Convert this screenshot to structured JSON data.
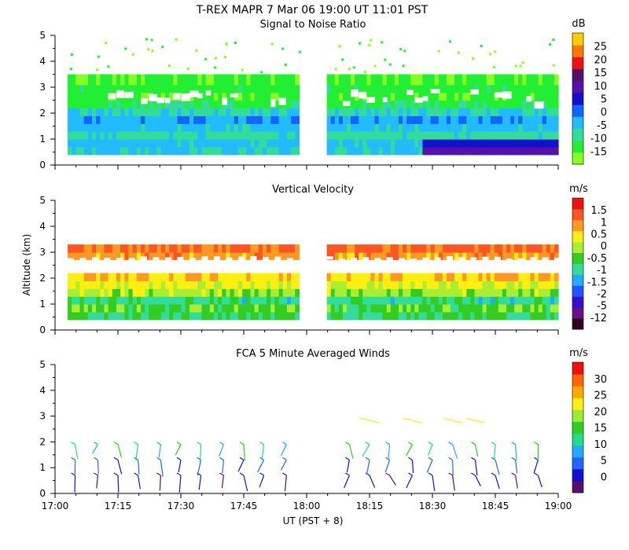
{
  "figure": {
    "title": "T-REX   MAPR   7 Mar 06   19:00 UT   11:01   PST",
    "ylabel": "Altitude (km)",
    "xlabel": "UT  (PST + 8)",
    "x_ticks": [
      17.0,
      17.25,
      17.5,
      17.75,
      18.0,
      18.25,
      18.5,
      18.75,
      19.0
    ],
    "x_tick_labels": [
      "17:00",
      "17:15",
      "17:30",
      "17:45",
      "18:00",
      "18:15",
      "18:30",
      "18:45",
      "19:00"
    ],
    "y_ticks": [
      0,
      1,
      2,
      3,
      4,
      5
    ],
    "y_tick_labels": [
      "0",
      "1",
      "2",
      "3",
      "4",
      "5"
    ]
  },
  "chart_data": [
    {
      "type": "heatmap",
      "title": "Signal to Noise Ratio",
      "xlabel": "UT  (PST + 8)",
      "ylabel": "Altitude (km)",
      "xlim": [
        17.0,
        19.0
      ],
      "ylim": [
        0,
        5
      ],
      "data_segments": [
        [
          17.05,
          17.97
        ],
        [
          18.08,
          19.0
        ]
      ],
      "colorbar": {
        "unit": "dB",
        "colors": [
          "#88ff22",
          "#22ee33",
          "#33dd99",
          "#22bbff",
          "#1166ff",
          "#1111cc",
          "#5511aa",
          "#551166",
          "#ee1111",
          "#ff7700",
          "#ffcc00"
        ],
        "ticks": [
          "-15",
          "-10",
          "-5",
          "0",
          "5",
          "10",
          "15",
          "20",
          "25"
        ]
      },
      "layers": [
        {
          "y0": 0.4,
          "y1": 0.7,
          "value": -5
        },
        {
          "y0": 0.7,
          "y1": 1.0,
          "value": -3
        },
        {
          "y0": 1.0,
          "y1": 1.3,
          "value": -7
        },
        {
          "y0": 1.3,
          "y1": 1.6,
          "value": -3
        },
        {
          "y0": 1.6,
          "y1": 1.9,
          "value": -1
        },
        {
          "y0": 1.9,
          "y1": 2.2,
          "value": -6
        },
        {
          "y0": 2.2,
          "y1": 2.5,
          "value": -11
        },
        {
          "y0": 2.5,
          "y1": 2.8,
          "value": -14
        },
        {
          "y0": 2.8,
          "y1": 3.1,
          "value": -12
        },
        {
          "y0": 3.1,
          "y1": 3.5,
          "value": -14
        }
      ]
    },
    {
      "type": "heatmap",
      "title": "Vertical Velocity",
      "xlabel": "UT  (PST + 8)",
      "ylabel": "Altitude (km)",
      "xlim": [
        17.0,
        19.0
      ],
      "ylim": [
        0,
        5
      ],
      "data_segments": [
        [
          17.05,
          17.97
        ],
        [
          18.08,
          19.0
        ]
      ],
      "colorbar": {
        "unit": "m/s",
        "colors": [
          "#330022",
          "#661188",
          "#3311cc",
          "#2255ff",
          "#22aaff",
          "#33dd99",
          "#33cc22",
          "#aaee33",
          "#ffee11",
          "#ff9922",
          "#ff5522",
          "#ee1111"
        ],
        "ticks": [
          "-12",
          "-5",
          "-2",
          "-1.5",
          "-1",
          "-0.5",
          "0",
          "0.5",
          "1",
          "1.5"
        ]
      },
      "layers": [
        {
          "y0": 0.4,
          "y1": 0.7,
          "value": -0.4
        },
        {
          "y0": 0.7,
          "y1": 1.0,
          "value": -0.2
        },
        {
          "y0": 1.0,
          "y1": 1.3,
          "value": -0.7
        },
        {
          "y0": 1.3,
          "y1": 1.6,
          "value": 0.2
        },
        {
          "y0": 1.6,
          "y1": 1.9,
          "value": 0.6
        },
        {
          "y0": 1.9,
          "y1": 2.2,
          "value": 0.9
        },
        {
          "y0": 2.7,
          "y1": 3.0,
          "value": 1.2
        },
        {
          "y0": 3.0,
          "y1": 3.3,
          "value": 1.6
        }
      ]
    },
    {
      "type": "scatter",
      "title": "FCA 5 Minute Averaged Winds",
      "xlabel": "UT  (PST + 8)",
      "ylabel": "Altitude (km)",
      "xlim": [
        17.0,
        19.0
      ],
      "ylim": [
        0,
        5
      ],
      "times": [
        17.08,
        17.17,
        17.25,
        17.33,
        17.42,
        17.5,
        17.58,
        17.67,
        17.75,
        17.83,
        17.92,
        18.17,
        18.25,
        18.33,
        18.42,
        18.5,
        18.58,
        18.67,
        18.75,
        18.83,
        18.92
      ],
      "altitudes": [
        0.7,
        1.3,
        1.9
      ],
      "upper_altitude": 2.8,
      "upper_times": [
        18.25,
        18.42,
        18.58,
        18.67
      ],
      "colorbar": {
        "unit": "m/s",
        "colors": [
          "#551166",
          "#1111cc",
          "#2266ff",
          "#22aaff",
          "#22dd88",
          "#33cc22",
          "#99ee33",
          "#ffee11",
          "#ffaa00",
          "#ff6600",
          "#ee1111"
        ],
        "ticks": [
          "0",
          "5",
          "10",
          "15",
          "20",
          "25",
          "30"
        ]
      },
      "wind_speeds": [
        [
          3,
          6,
          12
        ],
        [
          2,
          7,
          11
        ],
        [
          4,
          5,
          15
        ]
      ]
    }
  ]
}
